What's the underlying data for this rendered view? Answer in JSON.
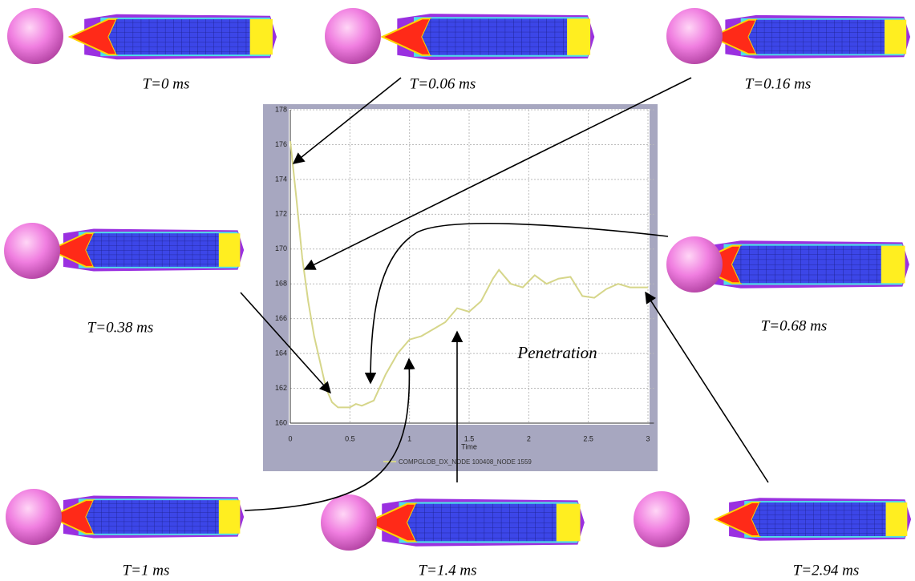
{
  "chart_data": {
    "type": "line",
    "x_label": "Time",
    "x": [
      0,
      0.05,
      0.1,
      0.15,
      0.2,
      0.25,
      0.3,
      0.35,
      0.4,
      0.5,
      0.55,
      0.6,
      0.7,
      0.8,
      0.9,
      1,
      1.1,
      1.2,
      1.3,
      1.4,
      1.5,
      1.6,
      1.7,
      1.75,
      1.85,
      1.95,
      2.05,
      2.15,
      2.25,
      2.35,
      2.45,
      2.55,
      2.65,
      2.75,
      2.85,
      3
    ],
    "series": [
      {
        "name": "COMPGLOB_DX_NODE 100408_NODE 1559",
        "color": "#d6d68a",
        "values": [
          176.2,
          173,
          169.5,
          167,
          165,
          163.5,
          162,
          161.2,
          160.9,
          160.9,
          161.1,
          161,
          161.3,
          162.8,
          164,
          164.8,
          165,
          165.4,
          165.8,
          166.6,
          166.4,
          167,
          168.3,
          168.8,
          168,
          167.8,
          168.5,
          168,
          168.3,
          168.4,
          167.3,
          167.2,
          167.7,
          168,
          167.8,
          167.8
        ]
      }
    ],
    "xlim": [
      0,
      3.05
    ],
    "ylim": [
      160,
      178
    ],
    "xticks": [
      0,
      0.5,
      1,
      1.5,
      2,
      2.5,
      3
    ],
    "yticks": [
      160,
      162,
      164,
      166,
      168,
      170,
      172,
      174,
      176,
      178
    ],
    "grid": true,
    "annotations": [
      "T=0 ms",
      "T=0.06 ms",
      "T=0.16 ms",
      "T=0.38 ms",
      "T=0.68 ms",
      "T=1 ms",
      "T=1.4 ms",
      "T=2.94 ms",
      "Penetration"
    ]
  }
}
